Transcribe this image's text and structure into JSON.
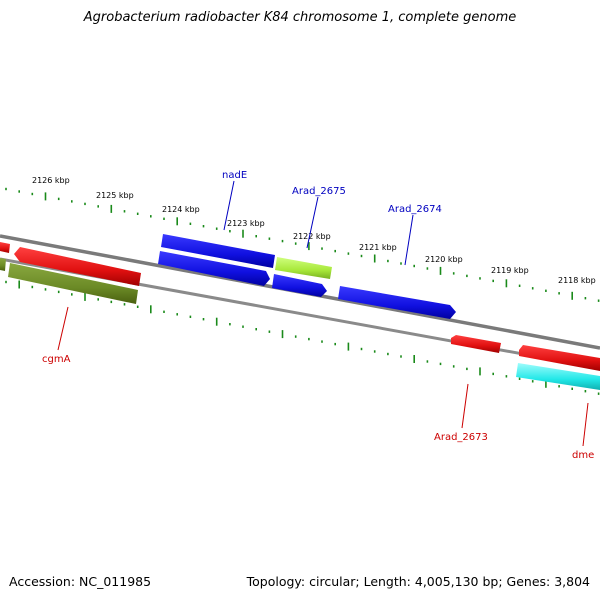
{
  "title": "Agrobacterium radiobacter K84 chromosome 1, complete genome",
  "accession_text": "Accession: NC_011985",
  "summary_text": "Topology: circular; Length: 4,005,130 bp; Genes: 3,804",
  "ruler_labels": [
    "2126 kbp",
    "2125 kbp",
    "2124 kbp",
    "2123 kbp",
    "2122 kbp",
    "2121 kbp",
    "2120 kbp",
    "2119 kbp",
    "2118 kbp"
  ],
  "gene_labels": {
    "nadE": "nadE",
    "arad_2675": "Arad_2675",
    "arad_2674": "Arad_2674",
    "cgmA": "cgmA",
    "arad_2673": "Arad_2673",
    "dme": "dme"
  },
  "colors": {
    "backbone": "#808080",
    "ruler": "#1a8a1a",
    "label_forward": "#0000c0",
    "label_reverse": "#cc0000",
    "gene_blue": "#1010e0",
    "gene_red": "#e01010",
    "gene_green": "#6b8a26",
    "gene_lime": "#a8e83a",
    "gene_cyan": "#22e8e8"
  }
}
